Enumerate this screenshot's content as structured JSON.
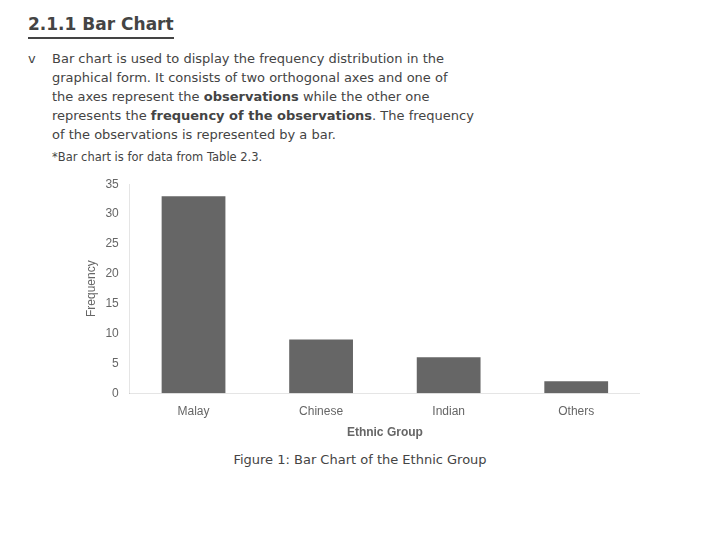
{
  "chart_data": {
    "type": "bar",
    "title": "2.1.1 Bar Chart",
    "bullet": "v",
    "annotations": [
      [
        {
          "text": "Bar chart is used to display the frequency distribution in the",
          "bold": false
        }
      ],
      [
        {
          "text": "graphical form. It consists of two orthogonal axes and one of",
          "bold": false
        }
      ],
      [
        {
          "text": "the axes represent the ",
          "bold": false
        },
        {
          "text": "observations",
          "bold": true
        },
        {
          "text": " while the other one",
          "bold": false
        }
      ],
      [
        {
          "text": "represents the ",
          "bold": false
        },
        {
          "text": "frequency of the observations",
          "bold": true
        },
        {
          "text": ". The frequency",
          "bold": false
        }
      ],
      [
        {
          "text": "of the observations is represented by a bar.",
          "bold": false
        }
      ]
    ],
    "footnote": "*Bar chart is for data from Table 2.3.",
    "caption": "Figure 1: Bar Chart of the Ethnic Group",
    "categories": [
      "Malay",
      "Chinese",
      "Indian",
      "Others"
    ],
    "values": [
      33,
      9,
      6,
      2
    ],
    "color": "#666666",
    "xlabel": "Ethnic Group",
    "ylabel": "Frequency",
    "ylim": [
      0,
      35
    ],
    "yticks": [
      0,
      5,
      10,
      15,
      20,
      25,
      30,
      35
    ],
    "grid": false
  }
}
